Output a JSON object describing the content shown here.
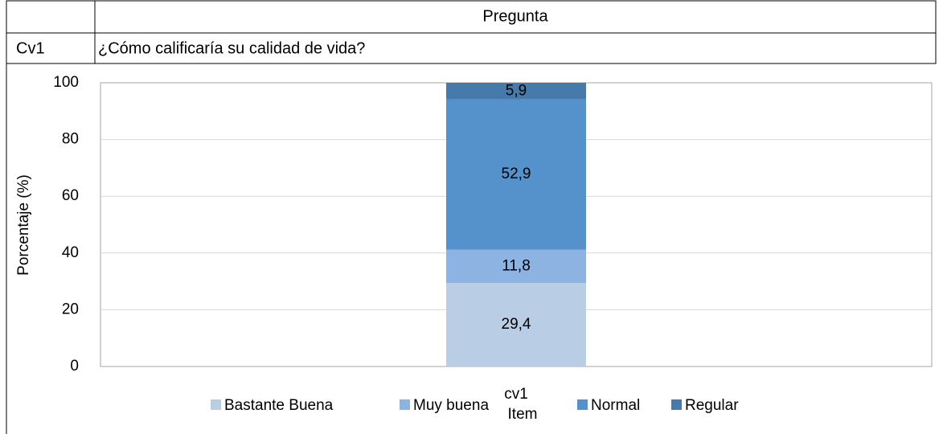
{
  "table": {
    "header": [
      "",
      "Pregunta"
    ],
    "rows": [
      [
        "Cv1",
        "¿Cómo calificaría su calidad de vida?"
      ]
    ]
  },
  "chart_data": {
    "type": "bar",
    "stacked": true,
    "categories": [
      "cv1"
    ],
    "series": [
      {
        "name": "Bastante Buena",
        "color": "#b9cde5",
        "values": [
          29.4
        ],
        "value_labels": [
          "29,4"
        ]
      },
      {
        "name": "Muy buena",
        "color": "#8db3e2",
        "values": [
          11.8
        ],
        "value_labels": [
          "11,8"
        ]
      },
      {
        "name": "Normal",
        "color": "#5591cb",
        "values": [
          52.9
        ],
        "value_labels": [
          "52,9"
        ]
      },
      {
        "name": "Regular",
        "color": "#457aaa",
        "values": [
          5.9
        ],
        "value_labels": [
          "5,9"
        ]
      }
    ],
    "ylabel": "Porcentaje (%)",
    "xlabel": "Item",
    "ylim": [
      0,
      100
    ],
    "yticks": [
      0,
      20,
      40,
      60,
      80,
      100
    ],
    "grid": true,
    "legend": "bottom"
  }
}
